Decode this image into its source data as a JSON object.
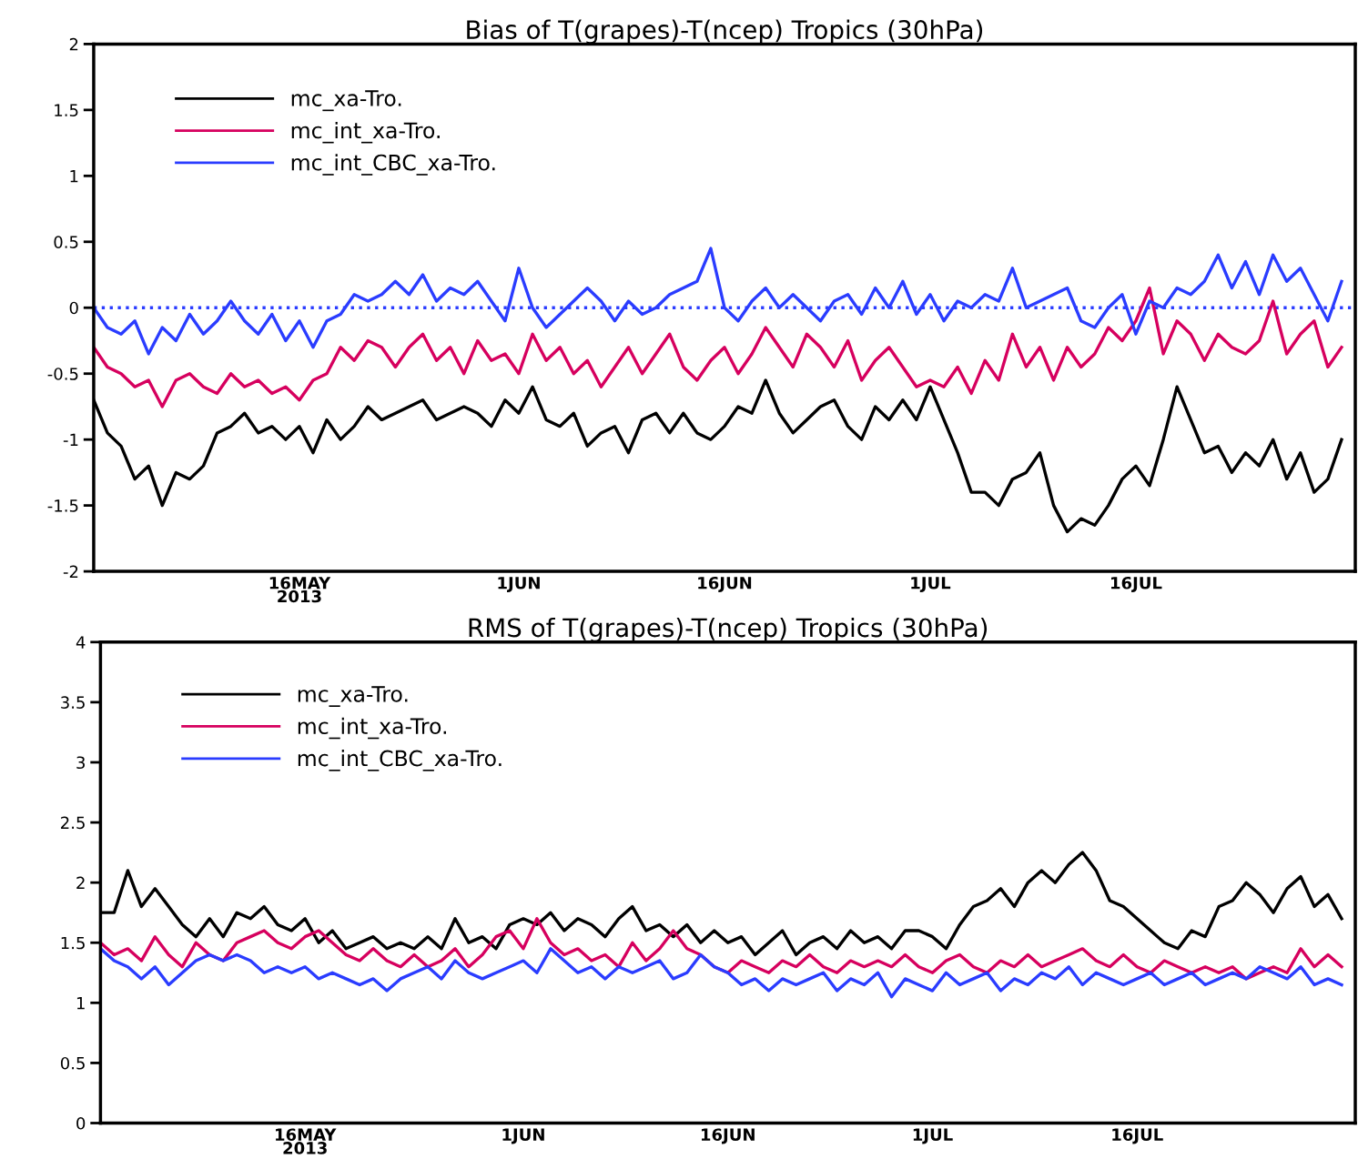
{
  "chart_data": [
    {
      "type": "line",
      "title": "Bias of T(grapes)-T(ncep) Tropics (30hPa)",
      "x": [
        "2013-05-01",
        "2013-05-02",
        "2013-05-03",
        "2013-05-04",
        "2013-05-05",
        "2013-05-06",
        "2013-05-07",
        "2013-05-08",
        "2013-05-09",
        "2013-05-10",
        "2013-05-11",
        "2013-05-12",
        "2013-05-13",
        "2013-05-14",
        "2013-05-15",
        "2013-05-16",
        "2013-05-17",
        "2013-05-18",
        "2013-05-19",
        "2013-05-20",
        "2013-05-21",
        "2013-05-22",
        "2013-05-23",
        "2013-05-24",
        "2013-05-25",
        "2013-05-26",
        "2013-05-27",
        "2013-05-28",
        "2013-05-29",
        "2013-05-30",
        "2013-05-31",
        "2013-06-01",
        "2013-06-02",
        "2013-06-03",
        "2013-06-04",
        "2013-06-05",
        "2013-06-06",
        "2013-06-07",
        "2013-06-08",
        "2013-06-09",
        "2013-06-10",
        "2013-06-11",
        "2013-06-12",
        "2013-06-13",
        "2013-06-14",
        "2013-06-15",
        "2013-06-16",
        "2013-06-17",
        "2013-06-18",
        "2013-06-19",
        "2013-06-20",
        "2013-06-21",
        "2013-06-22",
        "2013-06-23",
        "2013-06-24",
        "2013-06-25",
        "2013-06-26",
        "2013-06-27",
        "2013-06-28",
        "2013-06-29",
        "2013-06-30",
        "2013-07-01",
        "2013-07-02",
        "2013-07-03",
        "2013-07-04",
        "2013-07-05",
        "2013-07-06",
        "2013-07-07",
        "2013-07-08",
        "2013-07-09",
        "2013-07-10",
        "2013-07-11",
        "2013-07-12",
        "2013-07-13",
        "2013-07-14",
        "2013-07-15",
        "2013-07-16",
        "2013-07-17",
        "2013-07-18",
        "2013-07-19",
        "2013-07-20",
        "2013-07-21",
        "2013-07-22",
        "2013-07-23",
        "2013-07-24",
        "2013-07-25",
        "2013-07-26",
        "2013-07-27",
        "2013-07-28",
        "2013-07-29",
        "2013-07-30",
        "2013-07-31"
      ],
      "series": [
        {
          "name": "mc_xa-Tro.",
          "color": "#000000",
          "values": [
            -0.7,
            -0.95,
            -1.05,
            -1.3,
            -1.2,
            -1.5,
            -1.25,
            -1.3,
            -1.2,
            -0.95,
            -0.9,
            -0.8,
            -0.95,
            -0.9,
            -1.0,
            -0.9,
            -1.1,
            -0.85,
            -1.0,
            -0.9,
            -0.75,
            -0.85,
            -0.8,
            -0.75,
            -0.7,
            -0.85,
            -0.8,
            -0.75,
            -0.8,
            -0.9,
            -0.7,
            -0.8,
            -0.6,
            -0.85,
            -0.9,
            -0.8,
            -1.05,
            -0.95,
            -0.9,
            -1.1,
            -0.85,
            -0.8,
            -0.95,
            -0.8,
            -0.95,
            -1.0,
            -0.9,
            -0.75,
            -0.8,
            -0.55,
            -0.8,
            -0.95,
            -0.85,
            -0.75,
            -0.7,
            -0.9,
            -1.0,
            -0.75,
            -0.85,
            -0.7,
            -0.85,
            -0.6,
            -0.85,
            -1.1,
            -1.4,
            -1.4,
            -1.5,
            -1.3,
            -1.25,
            -1.1,
            -1.5,
            -1.7,
            -1.6,
            -1.65,
            -1.5,
            -1.3,
            -1.2,
            -1.35,
            -1.0,
            -0.6,
            -0.85,
            -1.1,
            -1.05,
            -1.25,
            -1.1,
            -1.2,
            -1.0,
            -1.3,
            -1.1,
            -1.4,
            -1.3,
            -1.0
          ]
        },
        {
          "name": "mc_int_xa-Tro.",
          "color": "#d6005e",
          "values": [
            -0.3,
            -0.45,
            -0.5,
            -0.6,
            -0.55,
            -0.75,
            -0.55,
            -0.5,
            -0.6,
            -0.65,
            -0.5,
            -0.6,
            -0.55,
            -0.65,
            -0.6,
            -0.7,
            -0.55,
            -0.5,
            -0.3,
            -0.4,
            -0.25,
            -0.3,
            -0.45,
            -0.3,
            -0.2,
            -0.4,
            -0.3,
            -0.5,
            -0.25,
            -0.4,
            -0.35,
            -0.5,
            -0.2,
            -0.4,
            -0.3,
            -0.5,
            -0.4,
            -0.6,
            -0.45,
            -0.3,
            -0.5,
            -0.35,
            -0.2,
            -0.45,
            -0.55,
            -0.4,
            -0.3,
            -0.5,
            -0.35,
            -0.15,
            -0.3,
            -0.45,
            -0.2,
            -0.3,
            -0.45,
            -0.25,
            -0.55,
            -0.4,
            -0.3,
            -0.45,
            -0.6,
            -0.55,
            -0.6,
            -0.45,
            -0.65,
            -0.4,
            -0.55,
            -0.2,
            -0.45,
            -0.3,
            -0.55,
            -0.3,
            -0.45,
            -0.35,
            -0.15,
            -0.25,
            -0.1,
            0.15,
            -0.35,
            -0.1,
            -0.2,
            -0.4,
            -0.2,
            -0.3,
            -0.35,
            -0.25,
            0.05,
            -0.35,
            -0.2,
            -0.1,
            -0.45,
            -0.3
          ]
        },
        {
          "name": "mc_int_CBC_xa-Tro.",
          "color": "#2a3cff",
          "values": [
            0.0,
            -0.15,
            -0.2,
            -0.1,
            -0.35,
            -0.15,
            -0.25,
            -0.05,
            -0.2,
            -0.1,
            0.05,
            -0.1,
            -0.2,
            -0.05,
            -0.25,
            -0.1,
            -0.3,
            -0.1,
            -0.05,
            0.1,
            0.05,
            0.1,
            0.2,
            0.1,
            0.25,
            0.05,
            0.15,
            0.1,
            0.2,
            0.05,
            -0.1,
            0.3,
            0.0,
            -0.15,
            -0.05,
            0.05,
            0.15,
            0.05,
            -0.1,
            0.05,
            -0.05,
            0.0,
            0.1,
            0.15,
            0.2,
            0.45,
            0.0,
            -0.1,
            0.05,
            0.15,
            0.0,
            0.1,
            0.0,
            -0.1,
            0.05,
            0.1,
            -0.05,
            0.15,
            0.0,
            0.2,
            -0.05,
            0.1,
            -0.1,
            0.05,
            0.0,
            0.1,
            0.05,
            0.3,
            0.0,
            0.05,
            0.1,
            0.15,
            -0.1,
            -0.15,
            0.0,
            0.1,
            -0.2,
            0.05,
            0.0,
            0.15,
            0.1,
            0.2,
            0.4,
            0.15,
            0.35,
            0.1,
            0.4,
            0.2,
            0.3,
            0.1,
            -0.1,
            0.2
          ]
        }
      ],
      "xlim": [
        "2013-05-01",
        "2013-08-01"
      ],
      "xticks": [
        {
          "value": "2013-05-16",
          "label": "16MAY\n2013"
        },
        {
          "value": "2013-06-01",
          "label": "1JUN"
        },
        {
          "value": "2013-06-16",
          "label": "16JUN"
        },
        {
          "value": "2013-07-01",
          "label": "1JUL"
        },
        {
          "value": "2013-07-16",
          "label": "16JUL"
        }
      ],
      "ylim": [
        -2,
        2
      ],
      "yticks": [
        -2,
        -1.5,
        -1,
        -0.5,
        0,
        0.5,
        1,
        1.5,
        2
      ],
      "ref_lines": [
        {
          "axis": "y",
          "value": 0,
          "color": "#2a3cff",
          "line_style": "dotted"
        }
      ],
      "legend": "top left",
      "grid": false
    },
    {
      "type": "line",
      "title": "RMS of T(grapes)-T(ncep) Tropics (30hPa)",
      "x": [
        "2013-05-01",
        "2013-05-02",
        "2013-05-03",
        "2013-05-04",
        "2013-05-05",
        "2013-05-06",
        "2013-05-07",
        "2013-05-08",
        "2013-05-09",
        "2013-05-10",
        "2013-05-11",
        "2013-05-12",
        "2013-05-13",
        "2013-05-14",
        "2013-05-15",
        "2013-05-16",
        "2013-05-17",
        "2013-05-18",
        "2013-05-19",
        "2013-05-20",
        "2013-05-21",
        "2013-05-22",
        "2013-05-23",
        "2013-05-24",
        "2013-05-25",
        "2013-05-26",
        "2013-05-27",
        "2013-05-28",
        "2013-05-29",
        "2013-05-30",
        "2013-05-31",
        "2013-06-01",
        "2013-06-02",
        "2013-06-03",
        "2013-06-04",
        "2013-06-05",
        "2013-06-06",
        "2013-06-07",
        "2013-06-08",
        "2013-06-09",
        "2013-06-10",
        "2013-06-11",
        "2013-06-12",
        "2013-06-13",
        "2013-06-14",
        "2013-06-15",
        "2013-06-16",
        "2013-06-17",
        "2013-06-18",
        "2013-06-19",
        "2013-06-20",
        "2013-06-21",
        "2013-06-22",
        "2013-06-23",
        "2013-06-24",
        "2013-06-25",
        "2013-06-26",
        "2013-06-27",
        "2013-06-28",
        "2013-06-29",
        "2013-06-30",
        "2013-07-01",
        "2013-07-02",
        "2013-07-03",
        "2013-07-04",
        "2013-07-05",
        "2013-07-06",
        "2013-07-07",
        "2013-07-08",
        "2013-07-09",
        "2013-07-10",
        "2013-07-11",
        "2013-07-12",
        "2013-07-13",
        "2013-07-14",
        "2013-07-15",
        "2013-07-16",
        "2013-07-17",
        "2013-07-18",
        "2013-07-19",
        "2013-07-20",
        "2013-07-21",
        "2013-07-22",
        "2013-07-23",
        "2013-07-24",
        "2013-07-25",
        "2013-07-26",
        "2013-07-27",
        "2013-07-28",
        "2013-07-29",
        "2013-07-30",
        "2013-07-31"
      ],
      "series": [
        {
          "name": "mc_xa-Tro.",
          "color": "#000000",
          "values": [
            1.75,
            1.75,
            2.1,
            1.8,
            1.95,
            1.8,
            1.65,
            1.55,
            1.7,
            1.55,
            1.75,
            1.7,
            1.8,
            1.65,
            1.6,
            1.7,
            1.5,
            1.6,
            1.45,
            1.5,
            1.55,
            1.45,
            1.5,
            1.45,
            1.55,
            1.45,
            1.7,
            1.5,
            1.55,
            1.45,
            1.65,
            1.7,
            1.65,
            1.75,
            1.6,
            1.7,
            1.65,
            1.55,
            1.7,
            1.8,
            1.6,
            1.65,
            1.55,
            1.65,
            1.5,
            1.6,
            1.5,
            1.55,
            1.4,
            1.5,
            1.6,
            1.4,
            1.5,
            1.55,
            1.45,
            1.6,
            1.5,
            1.55,
            1.45,
            1.6,
            1.6,
            1.55,
            1.45,
            1.65,
            1.8,
            1.85,
            1.95,
            1.8,
            2.0,
            2.1,
            2.0,
            2.15,
            2.25,
            2.1,
            1.85,
            1.8,
            1.7,
            1.6,
            1.5,
            1.45,
            1.6,
            1.55,
            1.8,
            1.85,
            2.0,
            1.9,
            1.75,
            1.95,
            2.05,
            1.8,
            1.9,
            1.7
          ]
        },
        {
          "name": "mc_int_xa-Tro.",
          "color": "#d6005e",
          "values": [
            1.5,
            1.4,
            1.45,
            1.35,
            1.55,
            1.4,
            1.3,
            1.5,
            1.4,
            1.35,
            1.5,
            1.55,
            1.6,
            1.5,
            1.45,
            1.55,
            1.6,
            1.5,
            1.4,
            1.35,
            1.45,
            1.35,
            1.3,
            1.4,
            1.3,
            1.35,
            1.45,
            1.3,
            1.4,
            1.55,
            1.6,
            1.45,
            1.7,
            1.5,
            1.4,
            1.45,
            1.35,
            1.4,
            1.3,
            1.5,
            1.35,
            1.45,
            1.6,
            1.45,
            1.4,
            1.3,
            1.25,
            1.35,
            1.3,
            1.25,
            1.35,
            1.3,
            1.4,
            1.3,
            1.25,
            1.35,
            1.3,
            1.35,
            1.3,
            1.4,
            1.3,
            1.25,
            1.35,
            1.4,
            1.3,
            1.25,
            1.35,
            1.3,
            1.4,
            1.3,
            1.35,
            1.4,
            1.45,
            1.35,
            1.3,
            1.4,
            1.3,
            1.25,
            1.35,
            1.3,
            1.25,
            1.3,
            1.25,
            1.3,
            1.2,
            1.25,
            1.3,
            1.25,
            1.45,
            1.3,
            1.4,
            1.3
          ]
        },
        {
          "name": "mc_int_CBC_xa-Tro.",
          "color": "#2a3cff",
          "values": [
            1.45,
            1.35,
            1.3,
            1.2,
            1.3,
            1.15,
            1.25,
            1.35,
            1.4,
            1.35,
            1.4,
            1.35,
            1.25,
            1.3,
            1.25,
            1.3,
            1.2,
            1.25,
            1.2,
            1.15,
            1.2,
            1.1,
            1.2,
            1.25,
            1.3,
            1.2,
            1.35,
            1.25,
            1.2,
            1.25,
            1.3,
            1.35,
            1.25,
            1.45,
            1.35,
            1.25,
            1.3,
            1.2,
            1.3,
            1.25,
            1.3,
            1.35,
            1.2,
            1.25,
            1.4,
            1.3,
            1.25,
            1.15,
            1.2,
            1.1,
            1.2,
            1.15,
            1.2,
            1.25,
            1.1,
            1.2,
            1.15,
            1.25,
            1.05,
            1.2,
            1.15,
            1.1,
            1.25,
            1.15,
            1.2,
            1.25,
            1.1,
            1.2,
            1.15,
            1.25,
            1.2,
            1.3,
            1.15,
            1.25,
            1.2,
            1.15,
            1.2,
            1.25,
            1.15,
            1.2,
            1.25,
            1.15,
            1.2,
            1.25,
            1.2,
            1.3,
            1.25,
            1.2,
            1.3,
            1.15,
            1.2,
            1.15
          ]
        }
      ],
      "xlim": [
        "2013-05-01",
        "2013-08-01"
      ],
      "xticks": [
        {
          "value": "2013-05-16",
          "label": "16MAY\n2013"
        },
        {
          "value": "2013-06-01",
          "label": "1JUN"
        },
        {
          "value": "2013-06-16",
          "label": "16JUN"
        },
        {
          "value": "2013-07-01",
          "label": "1JUL"
        },
        {
          "value": "2013-07-16",
          "label": "16JUL"
        }
      ],
      "ylim": [
        0,
        4
      ],
      "yticks": [
        0,
        0.5,
        1,
        1.5,
        2,
        2.5,
        3,
        3.5,
        4
      ],
      "legend": "top left",
      "grid": false
    }
  ]
}
